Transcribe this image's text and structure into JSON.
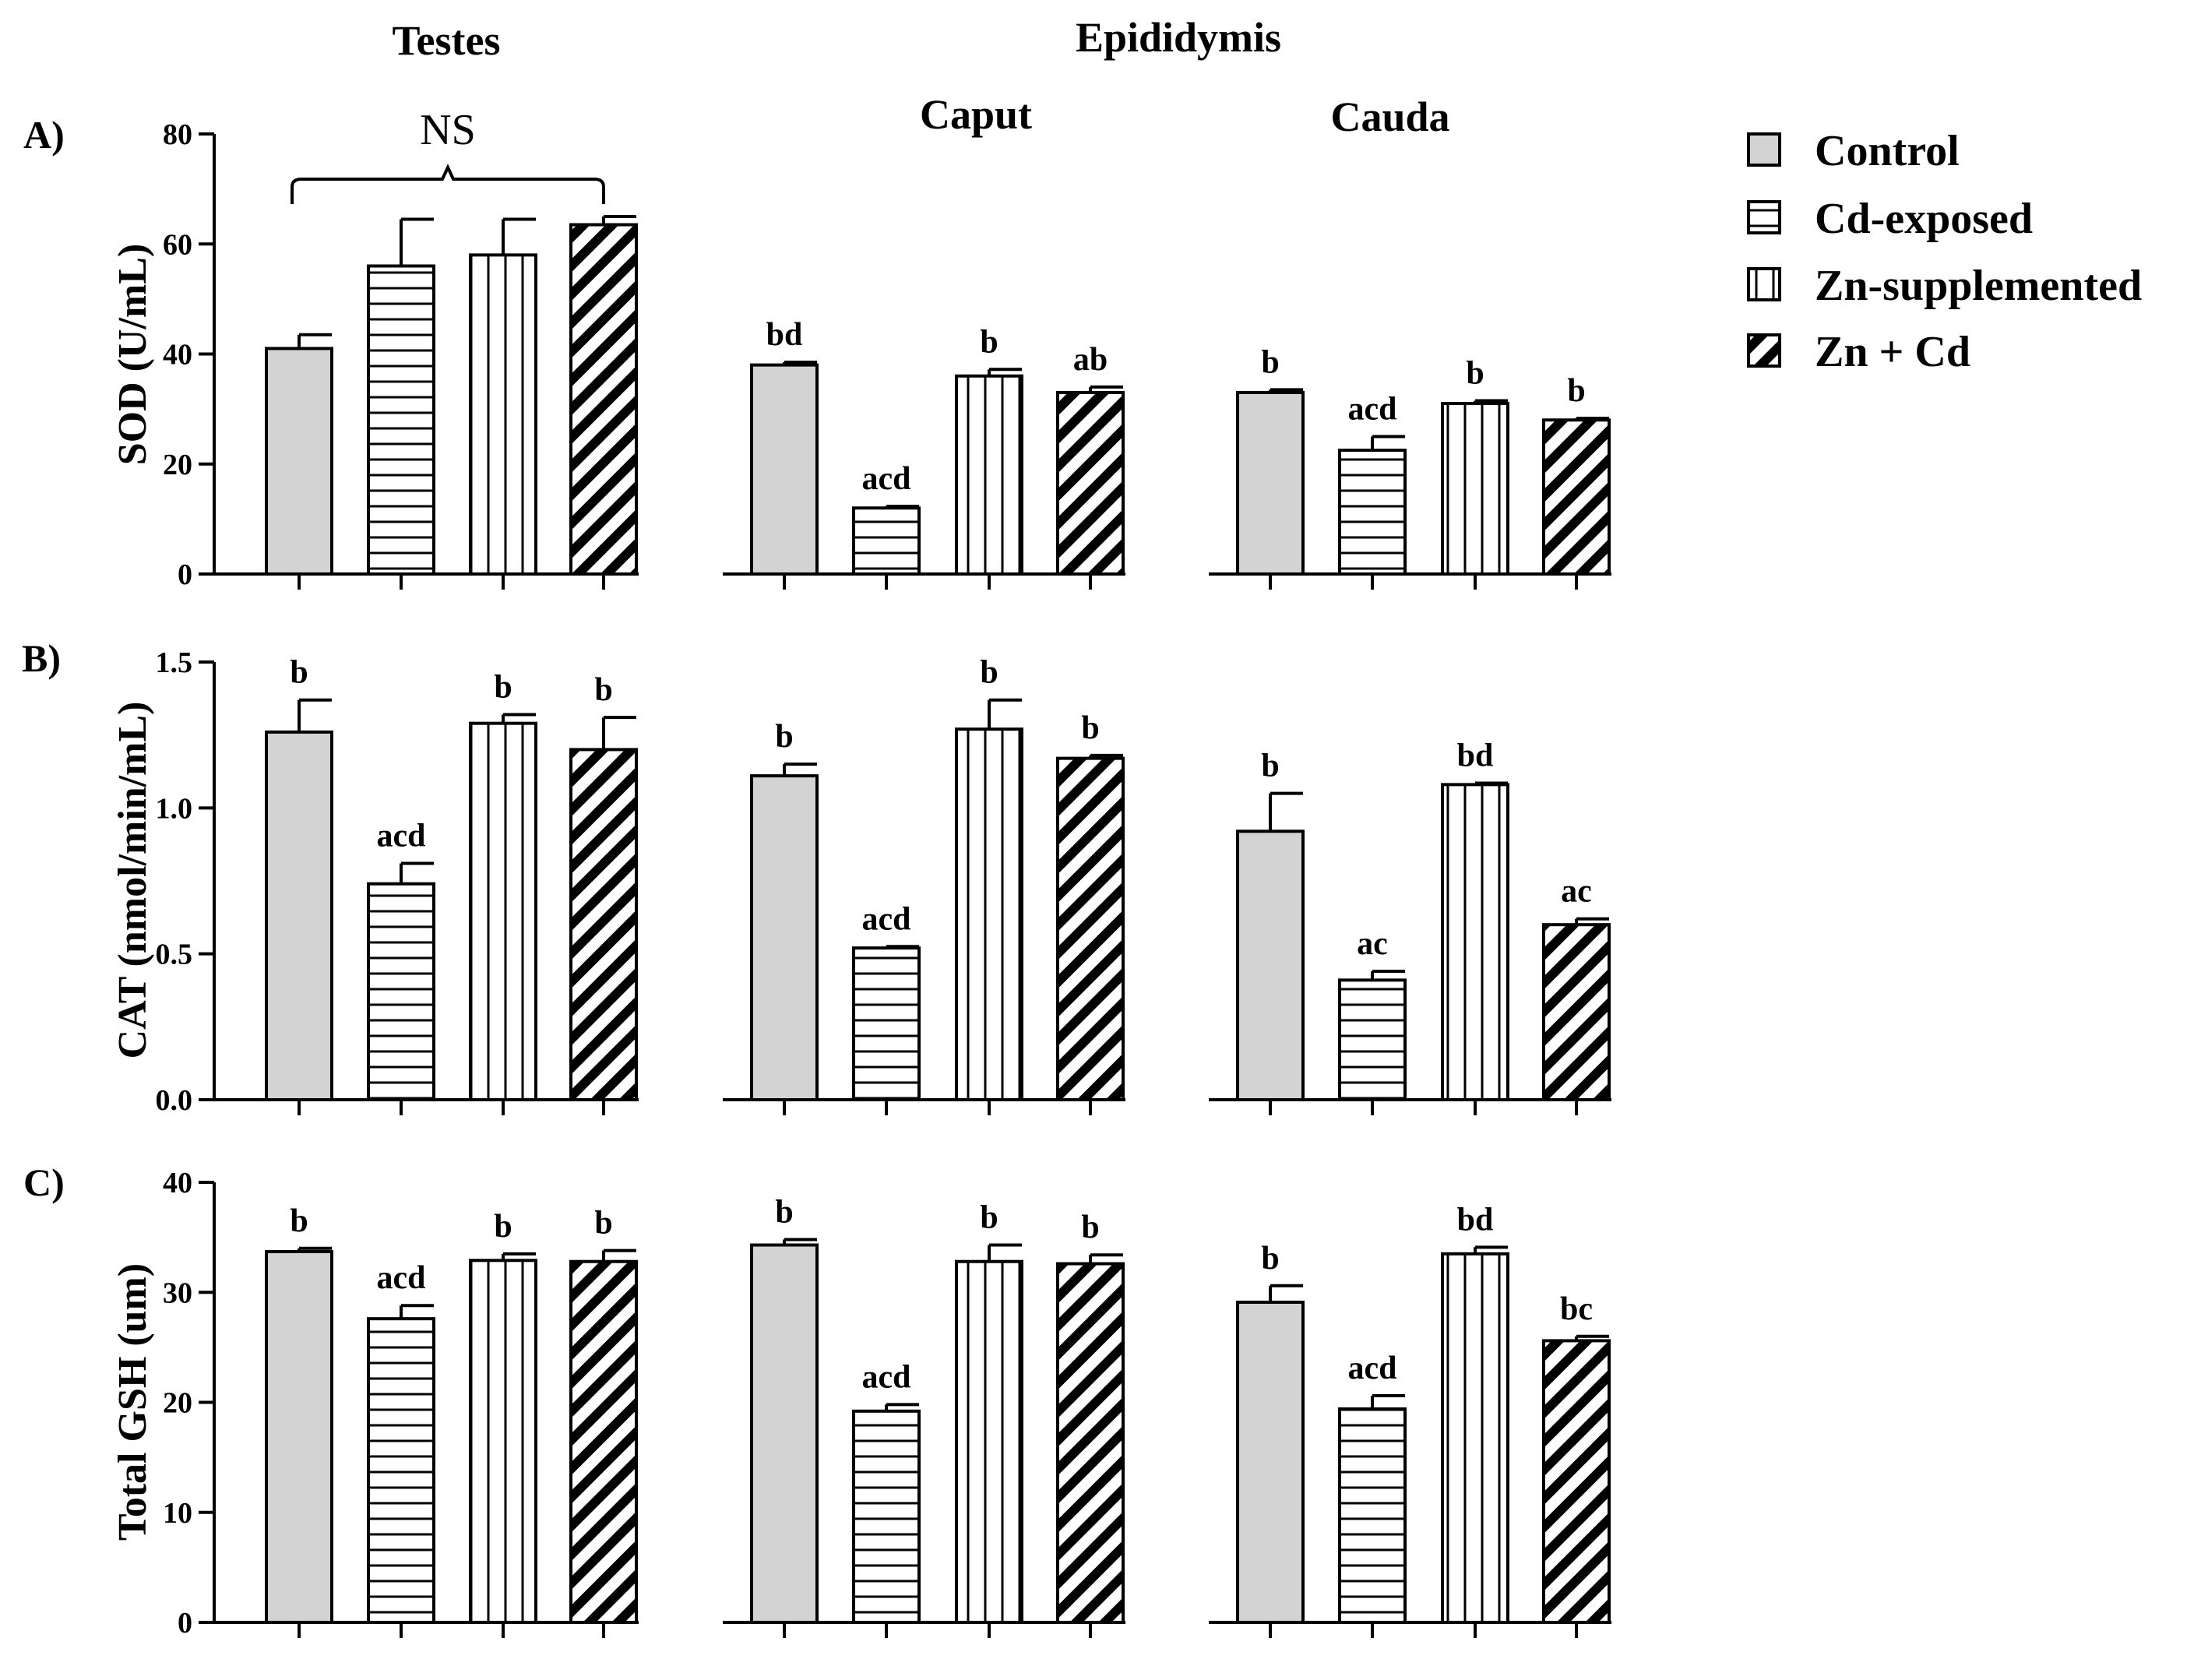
{
  "chart_data": {
    "type": "bar",
    "column_headers": [
      "Testes",
      "Epididymis"
    ],
    "sub_headers": [
      "Caput",
      "Cauda"
    ],
    "groups": [
      "Control",
      "Cd-exposed",
      "Zn-supplemented",
      "Zn + Cd"
    ],
    "legend": [
      {
        "label": "Control",
        "pattern": "solid"
      },
      {
        "label": "Cd-exposed",
        "pattern": "horizontal"
      },
      {
        "label": "Zn-supplemented",
        "pattern": "vertical"
      },
      {
        "label": "Zn + Cd",
        "pattern": "diagonal"
      }
    ],
    "fill_color": "#d3d3d3",
    "legend_placement": "right",
    "panels": [
      {
        "label": "A)",
        "ylabel": "SOD (U/mL)",
        "ylim": [
          0,
          80
        ],
        "yticks": [
          "0",
          "20",
          "40",
          "60",
          "80"
        ],
        "tick_values": [
          0,
          20,
          40,
          60,
          80
        ],
        "annotation": "NS",
        "tissues": [
          {
            "name": "Testes",
            "values": [
              41,
              56,
              58,
              63.5
            ],
            "errors": [
              2.5,
              8.5,
              6.5,
              1.5
            ],
            "letters": [
              "",
              "",
              "",
              ""
            ]
          },
          {
            "name": "Caput",
            "values": [
              38,
              12,
              36,
              33
            ],
            "errors": [
              0.5,
              0.3,
              1.2,
              1.0
            ],
            "letters": [
              "bd",
              "acd",
              "b",
              "ab"
            ]
          },
          {
            "name": "Cauda",
            "values": [
              33,
              22.5,
              31,
              28
            ],
            "errors": [
              0.5,
              2.5,
              0.5,
              0.3
            ],
            "letters": [
              "b",
              "acd",
              "b",
              "b"
            ]
          }
        ]
      },
      {
        "label": "B)",
        "ylabel": "CAT (nmol/min/mL)",
        "ylim": [
          0,
          1.5
        ],
        "yticks": [
          "0.0",
          "0.5",
          "1.0",
          "1.5"
        ],
        "tick_values": [
          0,
          0.5,
          1.0,
          1.5
        ],
        "annotation": "",
        "tissues": [
          {
            "name": "Testes",
            "values": [
              1.26,
              0.74,
              1.29,
              1.2
            ],
            "errors": [
              0.11,
              0.07,
              0.03,
              0.11
            ],
            "letters": [
              "b",
              "acd",
              "b",
              "b"
            ]
          },
          {
            "name": "Caput",
            "values": [
              1.11,
              0.52,
              1.27,
              1.17
            ],
            "errors": [
              0.04,
              0.005,
              0.1,
              0.01
            ],
            "letters": [
              "b",
              "acd",
              "b",
              "b"
            ]
          },
          {
            "name": "Cauda",
            "values": [
              0.92,
              0.41,
              1.08,
              0.6
            ],
            "errors": [
              0.13,
              0.03,
              0.005,
              0.02
            ],
            "letters": [
              "b",
              "ac",
              "bd",
              "ac"
            ]
          }
        ]
      },
      {
        "label": "C)",
        "ylabel": "Total GSH (um)",
        "ylim": [
          0,
          40
        ],
        "yticks": [
          "0",
          "10",
          "20",
          "30",
          "40"
        ],
        "tick_values": [
          0,
          10,
          20,
          30,
          40
        ],
        "annotation": "",
        "tissues": [
          {
            "name": "Testes",
            "values": [
              33.7,
              27.6,
              32.9,
              32.8
            ],
            "errors": [
              0.3,
              1.2,
              0.6,
              1.0
            ],
            "letters": [
              "b",
              "acd",
              "b",
              "b"
            ]
          },
          {
            "name": "Caput",
            "values": [
              34.3,
              19.2,
              32.8,
              32.6
            ],
            "errors": [
              0.5,
              0.6,
              1.5,
              0.8
            ],
            "letters": [
              "b",
              "acd",
              "b",
              "b"
            ]
          },
          {
            "name": "Cauda",
            "values": [
              29.1,
              19.4,
              33.5,
              25.6
            ],
            "errors": [
              1.5,
              1.2,
              0.6,
              0.4
            ],
            "letters": [
              "b",
              "acd",
              "bd",
              "bc"
            ]
          }
        ]
      }
    ]
  }
}
